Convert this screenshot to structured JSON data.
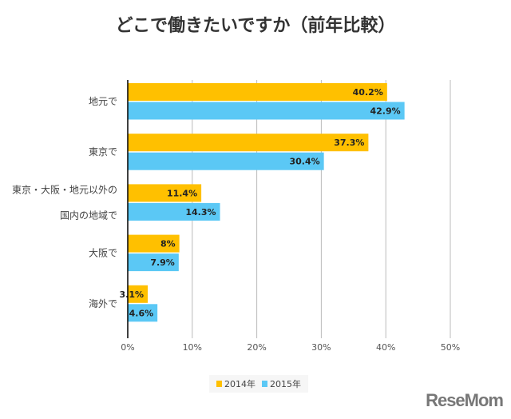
{
  "chart_data": {
    "type": "bar",
    "orientation": "horizontal",
    "title": "どこで働きたいですか（前年比較）",
    "categories": [
      "地元で",
      "東京で",
      "東京・大阪・地元以外の国内の地域で",
      "大阪で",
      "海外で"
    ],
    "category_lines": [
      [
        "地元で"
      ],
      [
        "東京で"
      ],
      [
        "東京・大阪・地元以外の",
        "国内の地域で"
      ],
      [
        "大阪で"
      ],
      [
        "海外で"
      ]
    ],
    "series": [
      {
        "name": "2014年",
        "color": "#FFC000",
        "values": [
          40.2,
          37.3,
          11.4,
          8,
          3.1
        ],
        "labels": [
          "40.2%",
          "37.3%",
          "11.4%",
          "8%",
          "3.1%"
        ]
      },
      {
        "name": "2015年",
        "color": "#5BC8F5",
        "values": [
          42.9,
          30.4,
          14.3,
          7.9,
          4.6
        ],
        "labels": [
          "42.9%",
          "30.4%",
          "14.3%",
          "7.9%",
          "4.6%"
        ]
      }
    ],
    "xlim": [
      0,
      50
    ],
    "xticks": [
      "0%",
      "10%",
      "20%",
      "30%",
      "40%",
      "50%"
    ],
    "grid": true,
    "legend": "bottom"
  },
  "logo": "ReseMom"
}
